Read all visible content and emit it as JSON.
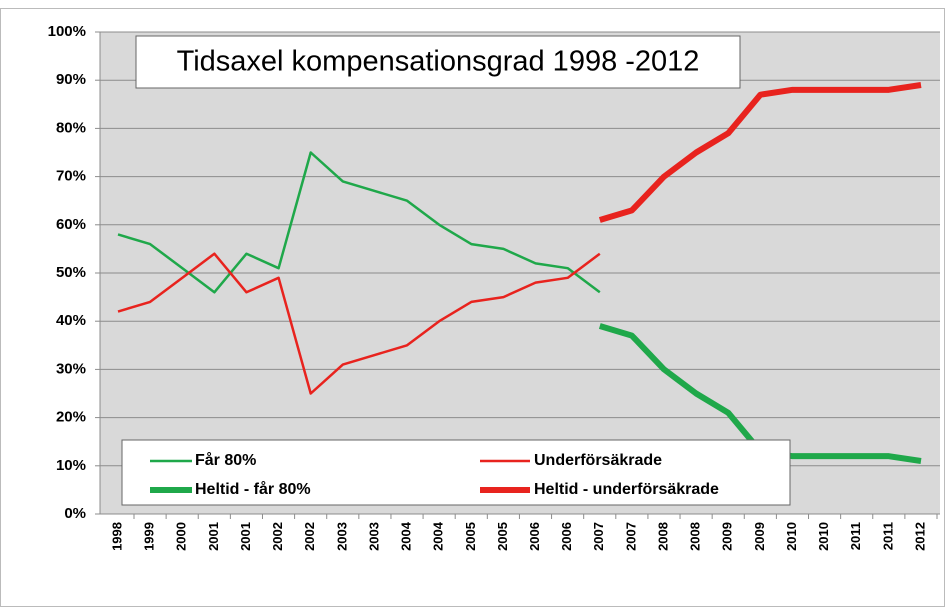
{
  "chart_data": {
    "type": "line",
    "title": "Tidsaxel kompensationsgrad 1998 -2012",
    "categories": [
      "1998",
      "1999",
      "2000",
      "2001",
      "2001",
      "2002",
      "2002",
      "2003",
      "2003",
      "2004",
      "2004",
      "2005",
      "2005",
      "2006",
      "2006",
      "2007",
      "2007",
      "2008",
      "2008",
      "2009",
      "2009",
      "2010",
      "2010",
      "2011",
      "2011",
      "2012"
    ],
    "series": [
      {
        "name": "Får 80%",
        "color": "#1fa84a",
        "width": 2.5,
        "values": [
          58,
          56,
          51,
          46,
          54,
          51,
          75,
          69,
          67,
          65,
          60,
          56,
          55,
          52,
          51,
          46,
          null,
          null,
          null,
          null,
          null,
          null,
          null,
          null,
          null,
          null
        ]
      },
      {
        "name": "Underförsäkrade",
        "color": "#e8231e",
        "width": 2.5,
        "values": [
          42,
          44,
          49,
          54,
          46,
          49,
          25,
          31,
          33,
          35,
          40,
          44,
          45,
          48,
          49,
          54,
          null,
          null,
          null,
          null,
          null,
          null,
          null,
          null,
          null,
          null
        ]
      },
      {
        "name": "Heltid - får 80%",
        "color": "#1fa84a",
        "width": 6,
        "values": [
          null,
          null,
          null,
          null,
          null,
          null,
          null,
          null,
          null,
          null,
          null,
          null,
          null,
          null,
          null,
          39,
          37,
          30,
          25,
          21,
          13,
          12,
          12,
          12,
          12,
          11
        ]
      },
      {
        "name": "Heltid - underförsäkrade",
        "color": "#e8231e",
        "width": 6,
        "values": [
          null,
          null,
          null,
          null,
          null,
          null,
          null,
          null,
          null,
          null,
          null,
          null,
          null,
          null,
          null,
          61,
          63,
          70,
          75,
          79,
          87,
          88,
          88,
          88,
          88,
          89
        ]
      }
    ],
    "ylim": [
      0,
      100
    ],
    "yticks": [
      {
        "value": 0,
        "label": "0%"
      },
      {
        "value": 10,
        "label": "10%"
      },
      {
        "value": 20,
        "label": "20%"
      },
      {
        "value": 30,
        "label": "30%"
      },
      {
        "value": 40,
        "label": "40%"
      },
      {
        "value": 50,
        "label": "50%"
      },
      {
        "value": 60,
        "label": "60%"
      },
      {
        "value": 70,
        "label": "70%"
      },
      {
        "value": 80,
        "label": "80%"
      },
      {
        "value": 90,
        "label": "90%"
      },
      {
        "value": 100,
        "label": "100%"
      }
    ],
    "grid": true,
    "legend": "lower left"
  }
}
